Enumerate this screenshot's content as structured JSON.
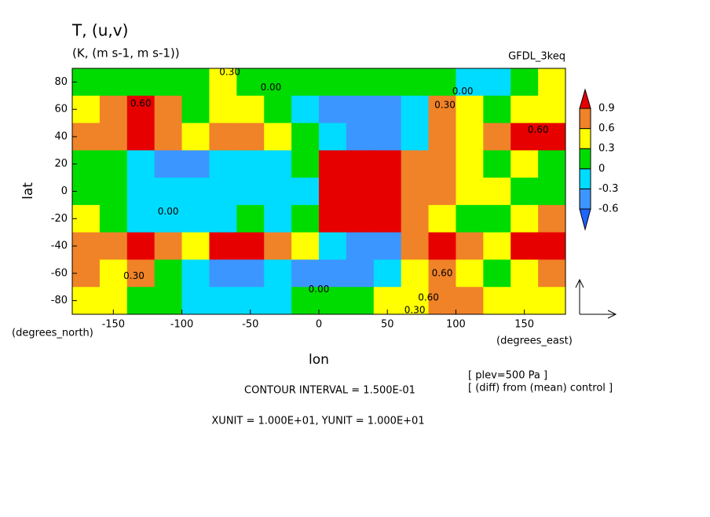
{
  "chart_data": {
    "type": "contour",
    "title": "T, (u,v)",
    "subtitle": "(K, (m s-1, m s-1))",
    "dataset": "GFDL_3keq",
    "x_label": "lon",
    "y_label": "lat",
    "x_units": "(degrees_east)",
    "y_units": "(degrees_north)",
    "notes": [
      "[ plev=500 Pa ]",
      "[ (diff) from (mean) control ]"
    ],
    "contour_interval": "CONTOUR INTERVAL = 1.500E-01",
    "units_line": "XUNIT = 1.000E+01, YUNIT = 1.000E+01",
    "xlim": [
      -180,
      180
    ],
    "ylim": [
      -90,
      90
    ],
    "xticks": [
      -150,
      -100,
      -50,
      0,
      50,
      100,
      150
    ],
    "yticks": [
      -80,
      -60,
      -40,
      -20,
      0,
      20,
      40,
      60,
      80
    ],
    "x": [
      -170,
      -150,
      -130,
      -110,
      -90,
      -70,
      -50,
      -30,
      -10,
      10,
      30,
      50,
      70,
      90,
      110,
      130,
      150,
      170
    ],
    "y": [
      80,
      60,
      40,
      20,
      0,
      -20,
      -40,
      -60,
      -80
    ],
    "z": [
      [
        0.1,
        0.2,
        0.1,
        0.1,
        0.1,
        0.3,
        0.2,
        0.1,
        0.0,
        0.1,
        0.2,
        0.2,
        0.1,
        0.0,
        -0.1,
        -0.1,
        0.1,
        0.3
      ],
      [
        0.4,
        0.6,
        0.9,
        0.6,
        0.1,
        0.4,
        0.4,
        0.1,
        -0.2,
        -0.5,
        -0.6,
        -0.5,
        -0.2,
        0.8,
        0.4,
        0.2,
        0.4,
        0.4
      ],
      [
        0.7,
        0.6,
        1.0,
        0.6,
        0.4,
        0.7,
        0.7,
        0.4,
        0.1,
        -0.2,
        -0.6,
        -0.5,
        -0.1,
        0.6,
        0.4,
        0.6,
        0.9,
        0.9
      ],
      [
        0.1,
        0.1,
        -0.2,
        -0.4,
        -0.4,
        -0.3,
        -0.2,
        -0.2,
        0.0,
        1.0,
        1.2,
        1.0,
        0.8,
        0.6,
        0.4,
        0.2,
        0.3,
        0.2
      ],
      [
        0.1,
        0.05,
        -0.1,
        -0.2,
        -0.2,
        -0.2,
        -0.25,
        -0.2,
        -0.1,
        0.9,
        1.0,
        1.0,
        0.7,
        0.6,
        0.4,
        0.3,
        0.2,
        0.1
      ],
      [
        0.3,
        0.1,
        -0.1,
        -0.2,
        -0.15,
        -0.2,
        0.1,
        -0.2,
        0.1,
        1.0,
        1.1,
        0.9,
        0.6,
        0.4,
        0.2,
        0.1,
        0.4,
        0.6
      ],
      [
        0.7,
        0.6,
        1.0,
        0.7,
        0.4,
        0.9,
        0.9,
        0.6,
        0.3,
        -0.2,
        -0.5,
        -0.6,
        0.6,
        0.9,
        0.6,
        0.4,
        1.0,
        1.0
      ],
      [
        0.6,
        0.4,
        0.6,
        0.2,
        -0.2,
        -0.4,
        -0.5,
        -0.2,
        -0.4,
        -0.6,
        -0.5,
        -0.2,
        0.4,
        0.6,
        0.4,
        0.2,
        0.4,
        0.6
      ],
      [
        0.3,
        0.4,
        0.2,
        0.1,
        -0.1,
        -0.2,
        -0.2,
        -0.1,
        0.1,
        0.0,
        0.1,
        0.3,
        0.4,
        0.6,
        0.6,
        0.4,
        0.3,
        0.3
      ]
    ],
    "levels": [
      -0.6,
      -0.3,
      0,
      0.3,
      0.6,
      0.9
    ],
    "colors": [
      "#1e64ff",
      "#3c96ff",
      "#00dcff",
      "#00dc00",
      "#ffff00",
      "#f08228",
      "#e60000"
    ],
    "contour_labels": [
      {
        "text": "0.30",
        "lon": -65,
        "lat": 87
      },
      {
        "text": "0.00",
        "lon": -35,
        "lat": 76
      },
      {
        "text": "0.60",
        "lon": -130,
        "lat": 64
      },
      {
        "text": "0.00",
        "lon": 105,
        "lat": 73
      },
      {
        "text": "0.30",
        "lon": 92,
        "lat": 63
      },
      {
        "text": "0.60",
        "lon": 160,
        "lat": 45
      },
      {
        "text": "0.00",
        "lon": -110,
        "lat": -15
      },
      {
        "text": "0.30",
        "lon": -135,
        "lat": -62
      },
      {
        "text": "0.00",
        "lon": 0,
        "lat": -72
      },
      {
        "text": "0.60",
        "lon": 90,
        "lat": -60
      },
      {
        "text": "0.60",
        "lon": 80,
        "lat": -78
      },
      {
        "text": "0.30",
        "lon": 70,
        "lat": -87
      }
    ]
  }
}
